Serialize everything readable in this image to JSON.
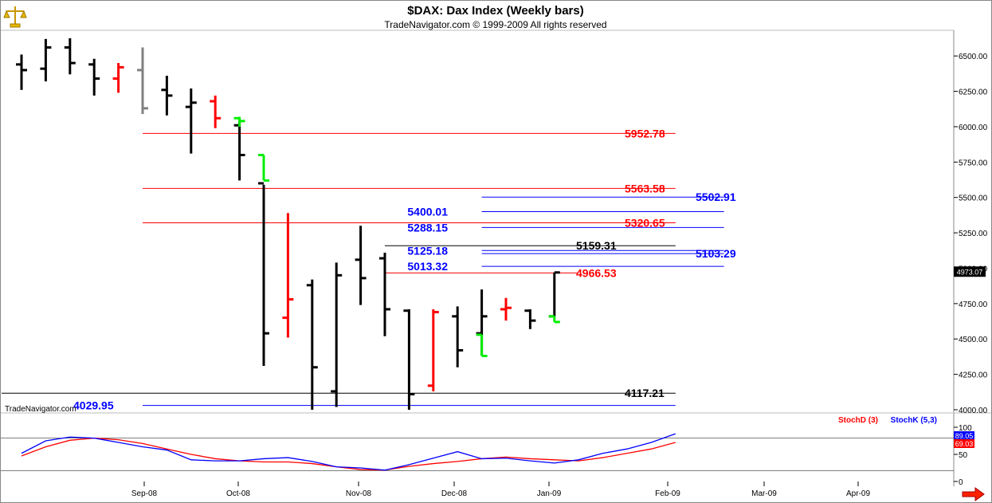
{
  "header": {
    "title": "$DAX:  Dax Index  (Weekly bars)",
    "subtitle": "TradeNavigator.com © 1999-2009 All rights reserved",
    "watermark": "TradeNavigator.com"
  },
  "icons": {
    "top_left": "gold-scales-icon",
    "bottom_right": "red-arrow-right-icon"
  },
  "chart_data": [
    {
      "type": "ohlc",
      "title": "$DAX:  Dax Index  (Weekly bars)",
      "y_ticks": [
        "6500.00",
        "6250.00",
        "6000.00",
        "5750.00",
        "5500.00",
        "5250.00",
        "5000.00",
        "4750.00",
        "4500.00",
        "4250.00",
        "4000.00"
      ],
      "ylim": [
        4000,
        6625
      ],
      "x_ticks": [
        "Sep-08",
        "Oct-08",
        "Nov-08",
        "Dec-08",
        "Jan-09",
        "Feb-09",
        "Mar-09",
        "Apr-09"
      ],
      "last_price": "4973.07",
      "bars": [
        {
          "week": 0,
          "open": 6440,
          "high": 6510,
          "low": 6260,
          "close": 6400,
          "color": "#000000"
        },
        {
          "week": 1,
          "open": 6410,
          "high": 6620,
          "low": 6320,
          "close": 6560,
          "color": "#000000"
        },
        {
          "week": 2,
          "open": 6560,
          "high": 6625,
          "low": 6370,
          "close": 6450,
          "color": "#000000"
        },
        {
          "week": 3,
          "open": 6440,
          "high": 6480,
          "low": 6220,
          "close": 6340,
          "color": "#000000"
        },
        {
          "week": 4,
          "open": 6340,
          "high": 6450,
          "low": 6240,
          "close": 6420,
          "color": "#ff0000"
        },
        {
          "week": 5,
          "open": 6400,
          "high": 6560,
          "low": 6090,
          "close": 6130,
          "color": "#808080"
        },
        {
          "week": 6,
          "open": 6260,
          "high": 6360,
          "low": 6080,
          "close": 6220,
          "color": "#000000"
        },
        {
          "week": 7,
          "open": 6140,
          "high": 6270,
          "low": 5810,
          "close": 6170,
          "color": "#000000"
        },
        {
          "week": 8,
          "open": 6180,
          "high": 6220,
          "low": 5990,
          "close": 6060,
          "color": "#ff0000"
        },
        {
          "week": 9,
          "open": 6010,
          "high": 6040,
          "low": 5620,
          "close": 5800,
          "color": "#000000"
        },
        {
          "week": 9,
          "open": 6060,
          "high": 6070,
          "low": 6000,
          "close": 6040,
          "color": "#00ee00"
        },
        {
          "week": 10,
          "open": 5800,
          "high": 5800,
          "low": 5620,
          "close": 5620,
          "color": "#00ee00"
        },
        {
          "week": 10,
          "open": 5600,
          "high": 5590,
          "low": 4310,
          "close": 4540,
          "color": "#000000"
        },
        {
          "week": 11,
          "open": 4650,
          "high": 5390,
          "low": 4510,
          "close": 4780,
          "color": "#ff0000"
        },
        {
          "week": 12,
          "open": 4880,
          "high": 4920,
          "low": 4000,
          "close": 4300,
          "color": "#000000"
        },
        {
          "week": 13,
          "open": 4130,
          "high": 5040,
          "low": 4020,
          "close": 4950,
          "color": "#000000"
        },
        {
          "week": 14,
          "open": 5060,
          "high": 5300,
          "low": 4740,
          "close": 4930,
          "color": "#000000"
        },
        {
          "week": 15,
          "open": 5070,
          "high": 5110,
          "low": 4520,
          "close": 4710,
          "color": "#000000"
        },
        {
          "week": 16,
          "open": 4700,
          "high": 4710,
          "low": 4000,
          "close": 4110,
          "color": "#000000"
        },
        {
          "week": 17,
          "open": 4170,
          "high": 4710,
          "low": 4130,
          "close": 4690,
          "color": "#ff0000"
        },
        {
          "week": 18,
          "open": 4660,
          "high": 4730,
          "low": 4300,
          "close": 4420,
          "color": "#000000"
        },
        {
          "week": 19,
          "open": 4540,
          "high": 4850,
          "low": 4380,
          "close": 4660,
          "color": "#000000"
        },
        {
          "week": 19,
          "open": 4530,
          "high": 4530,
          "low": 4380,
          "close": 4380,
          "color": "#00ee00"
        },
        {
          "week": 20,
          "open": 4710,
          "high": 4790,
          "low": 4630,
          "close": 4720,
          "color": "#ff0000"
        },
        {
          "week": 21,
          "open": 4700,
          "high": 4710,
          "low": 4570,
          "close": 4630,
          "color": "#000000"
        },
        {
          "week": 22,
          "open": 4660,
          "high": 4970,
          "low": 4660,
          "close": 4970,
          "color": "#000000"
        },
        {
          "week": 22,
          "open": 4660,
          "high": 4660,
          "low": 4620,
          "close": 4620,
          "color": "#00ee00"
        }
      ],
      "levels": [
        {
          "label": "5952.78",
          "value": 5952.78,
          "color": "#ff0000",
          "from_week": 5,
          "to_week": 27
        },
        {
          "label": "5563.58",
          "value": 5563.58,
          "color": "#ff0000",
          "from_week": 5,
          "to_week": 27
        },
        {
          "label": "5320.65",
          "value": 5320.65,
          "color": "#ff0000",
          "from_week": 5,
          "to_week": 27
        },
        {
          "label": "5502.91",
          "value": 5502.91,
          "color": "#0000ff",
          "from_week": 19,
          "to_week": 29
        },
        {
          "label": "5400.01",
          "value": 5400.01,
          "color": "#0000ff",
          "from_week": 19,
          "to_week": 29
        },
        {
          "label": "5288.15",
          "value": 5288.15,
          "color": "#0000ff",
          "from_week": 19,
          "to_week": 29
        },
        {
          "label": "5125.18",
          "value": 5125.18,
          "color": "#0000ff",
          "from_week": 19,
          "to_week": 29
        },
        {
          "label": "5103.29",
          "value": 5103.29,
          "color": "#0000ff",
          "from_week": 19,
          "to_week": 29
        },
        {
          "label": "5013.32",
          "value": 5013.32,
          "color": "#0000ff",
          "from_week": 19,
          "to_week": 29
        },
        {
          "label": "5159.31",
          "value": 5159.31,
          "color": "#000000",
          "from_week": 15,
          "to_week": 27
        },
        {
          "label": "4966.53",
          "value": 4966.53,
          "color": "#ff0000",
          "from_week": 15,
          "to_week": 23
        },
        {
          "label": "4117.21",
          "value": 4117.21,
          "color": "#000000",
          "from_week": -5,
          "to_week": 27
        },
        {
          "label": "4029.95",
          "value": 4029.95,
          "color": "#0000ff",
          "from_week": 5,
          "to_week": 27
        }
      ]
    },
    {
      "type": "line",
      "title": "",
      "y_ticks": [
        "100",
        "50",
        "0"
      ],
      "ylim": [
        0,
        100
      ],
      "series": [
        {
          "name": "StochD (3)",
          "color": "#ff0000",
          "values": [
            47,
            64,
            76,
            80,
            77,
            70,
            60,
            50,
            42,
            38,
            36,
            36,
            33,
            27,
            22,
            21,
            28,
            33,
            37,
            42,
            45,
            42,
            40,
            38,
            44,
            52,
            60,
            72
          ]
        },
        {
          "name": "StochK (5,3)",
          "color": "#0000ff",
          "values": [
            52,
            75,
            82,
            80,
            72,
            64,
            58,
            40,
            38,
            38,
            42,
            44,
            37,
            27,
            25,
            21,
            31,
            43,
            55,
            42,
            43,
            38,
            34,
            40,
            52,
            60,
            72,
            88
          ]
        }
      ],
      "reference_lines": [
        80,
        20
      ],
      "last_values": [
        "89.05",
        "69.03"
      ]
    }
  ]
}
